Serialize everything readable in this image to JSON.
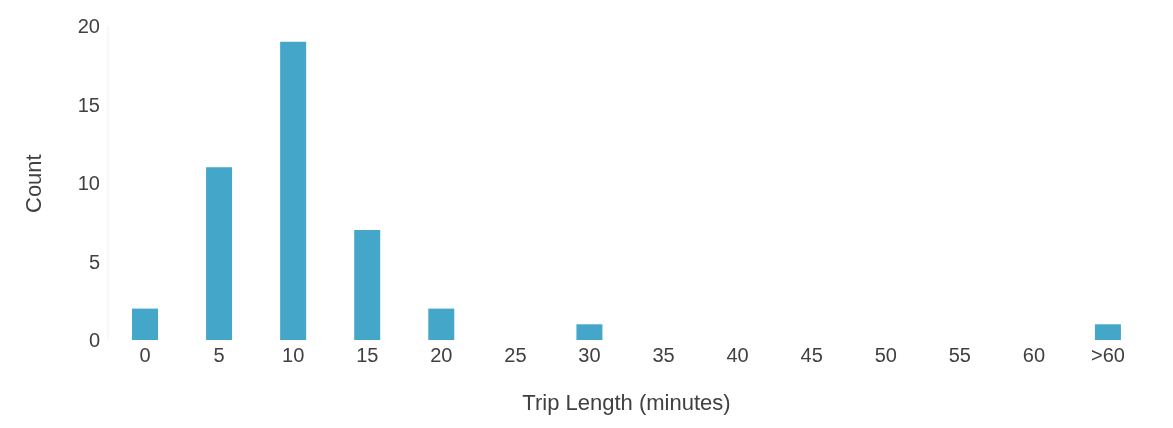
{
  "chart_data": {
    "type": "bar",
    "xlabel": "Trip Length (minutes)",
    "ylabel": "Count",
    "categories": [
      "0",
      "5",
      "10",
      "15",
      "20",
      "25",
      "30",
      "35",
      "40",
      "45",
      "50",
      "55",
      "60",
      ">60"
    ],
    "values": [
      2,
      11,
      19,
      7,
      2,
      0,
      1,
      0,
      0,
      0,
      0,
      0,
      0,
      1
    ],
    "color": "#44a6c9",
    "ylim": [
      0,
      20
    ],
    "yticks": [
      0,
      5,
      10,
      15,
      20
    ],
    "grid": false,
    "legend": false
  }
}
